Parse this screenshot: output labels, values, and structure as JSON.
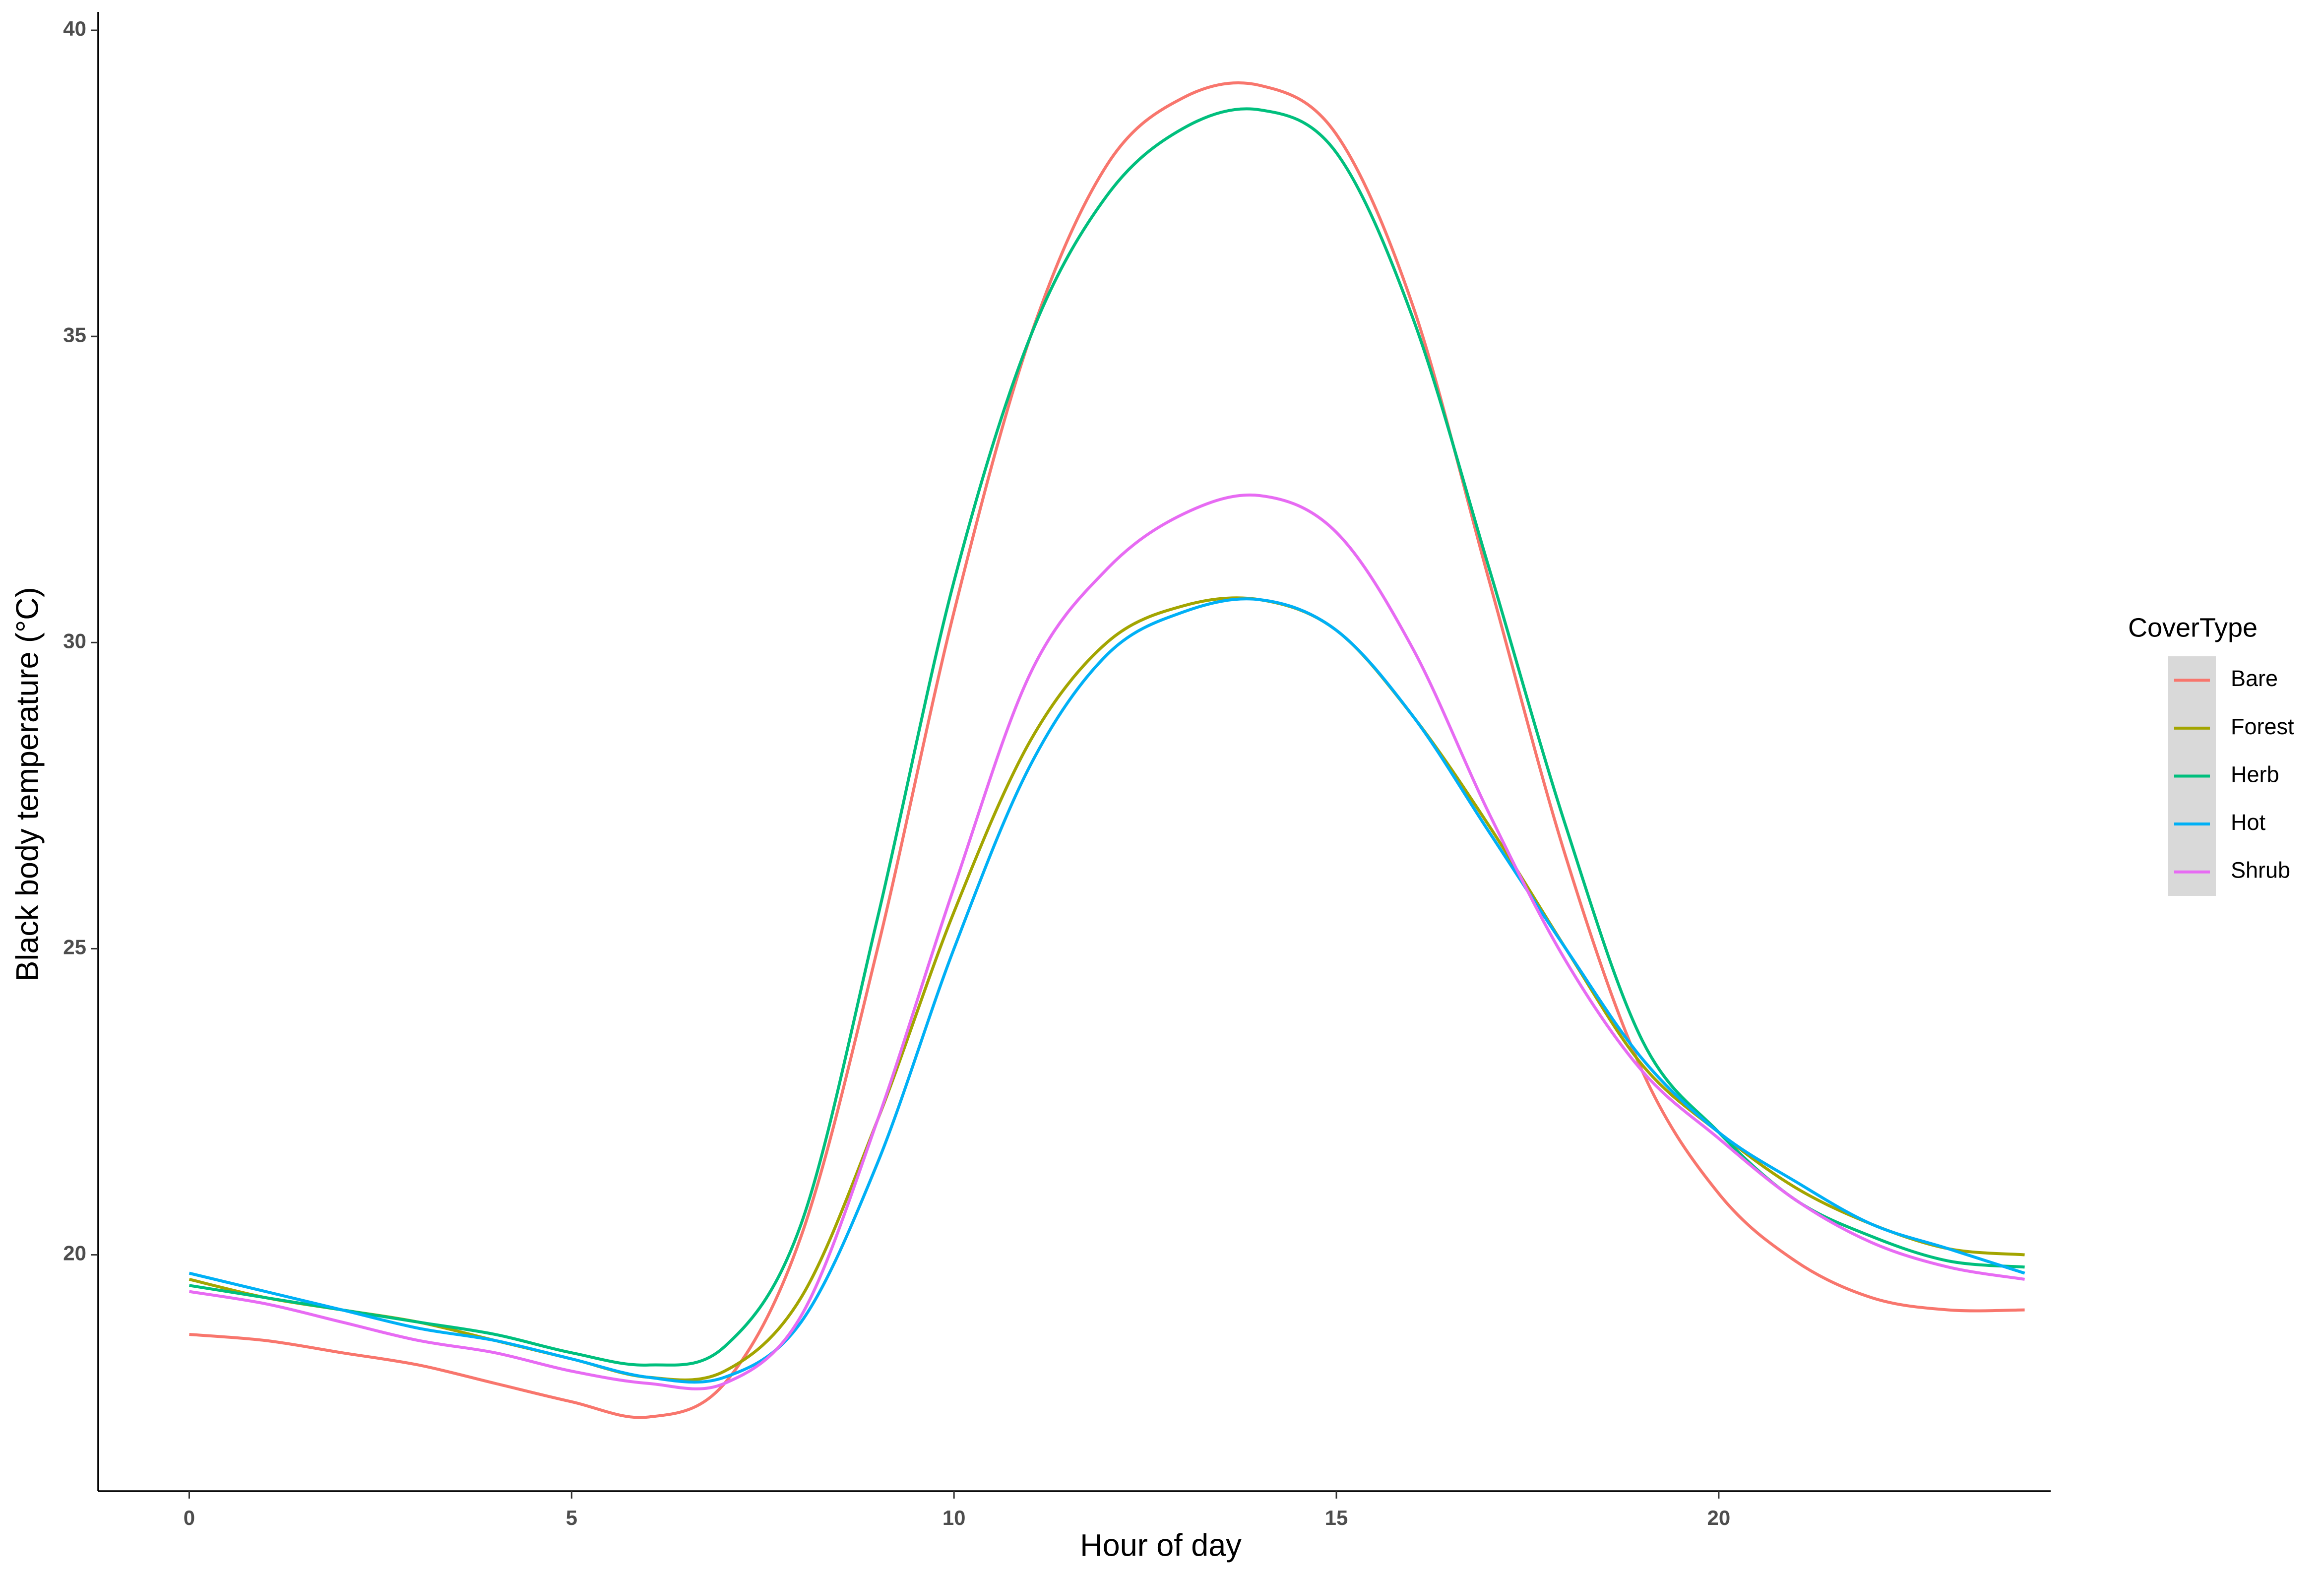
{
  "chart_data": {
    "type": "line",
    "x_label": "Hour of day",
    "y_label": "Black body temperature (°C)",
    "legend_title": "CoverType",
    "legend_position": "right",
    "x": [
      0,
      1,
      2,
      3,
      4,
      5,
      6,
      7,
      8,
      9,
      10,
      11,
      12,
      13,
      14,
      15,
      16,
      17,
      18,
      19,
      20,
      21,
      22,
      23,
      24
    ],
    "series": [
      {
        "name": "Bare",
        "color": "#F8766D",
        "values": [
          18.7,
          18.6,
          18.4,
          18.2,
          17.9,
          17.6,
          17.35,
          17.9,
          20.3,
          25,
          30.5,
          35,
          37.8,
          38.9,
          39.1,
          38.3,
          35.5,
          31,
          26.5,
          23,
          21,
          19.9,
          19.3,
          19.1,
          19.1
        ]
      },
      {
        "name": "Forest",
        "color": "#A3A500",
        "values": [
          19.6,
          19.3,
          19.1,
          18.9,
          18.6,
          18.3,
          18.0,
          18.1,
          19.3,
          22.2,
          25.6,
          28.4,
          30,
          30.6,
          30.7,
          30.2,
          28.8,
          27,
          25,
          23.1,
          22,
          21.1,
          20.5,
          20.1,
          20.0
        ]
      },
      {
        "name": "Herb",
        "color": "#00BF7D",
        "values": [
          19.5,
          19.3,
          19.1,
          18.9,
          18.7,
          18.4,
          18.2,
          18.5,
          20.5,
          25.5,
          31,
          35,
          37.3,
          38.4,
          38.7,
          38,
          35.3,
          31.2,
          27,
          23.5,
          22,
          20.9,
          20.3,
          19.9,
          19.8
        ]
      },
      {
        "name": "Hot",
        "color": "#00B0F6",
        "values": [
          19.7,
          19.4,
          19.1,
          18.8,
          18.6,
          18.3,
          18.0,
          18.0,
          18.9,
          21.5,
          25,
          28,
          29.8,
          30.5,
          30.7,
          30.2,
          28.8,
          26.9,
          25,
          23.2,
          22,
          21.2,
          20.5,
          20.1,
          19.7
        ]
      },
      {
        "name": "Shrub",
        "color": "#E76BF3",
        "values": [
          19.4,
          19.2,
          18.9,
          18.6,
          18.4,
          18.1,
          17.9,
          17.9,
          19,
          22.2,
          26,
          29.5,
          31.2,
          32.1,
          32.4,
          31.8,
          29.9,
          27.2,
          24.8,
          23,
          21.9,
          20.9,
          20.2,
          19.8,
          19.6
        ]
      }
    ],
    "xlim": [
      -1.19,
      24.34
    ],
    "xticks": [
      0,
      5,
      10,
      15,
      20
    ],
    "ylim": [
      16.14,
      40.3
    ],
    "yticks": [
      20,
      25,
      30,
      35,
      40
    ],
    "grid": false
  }
}
